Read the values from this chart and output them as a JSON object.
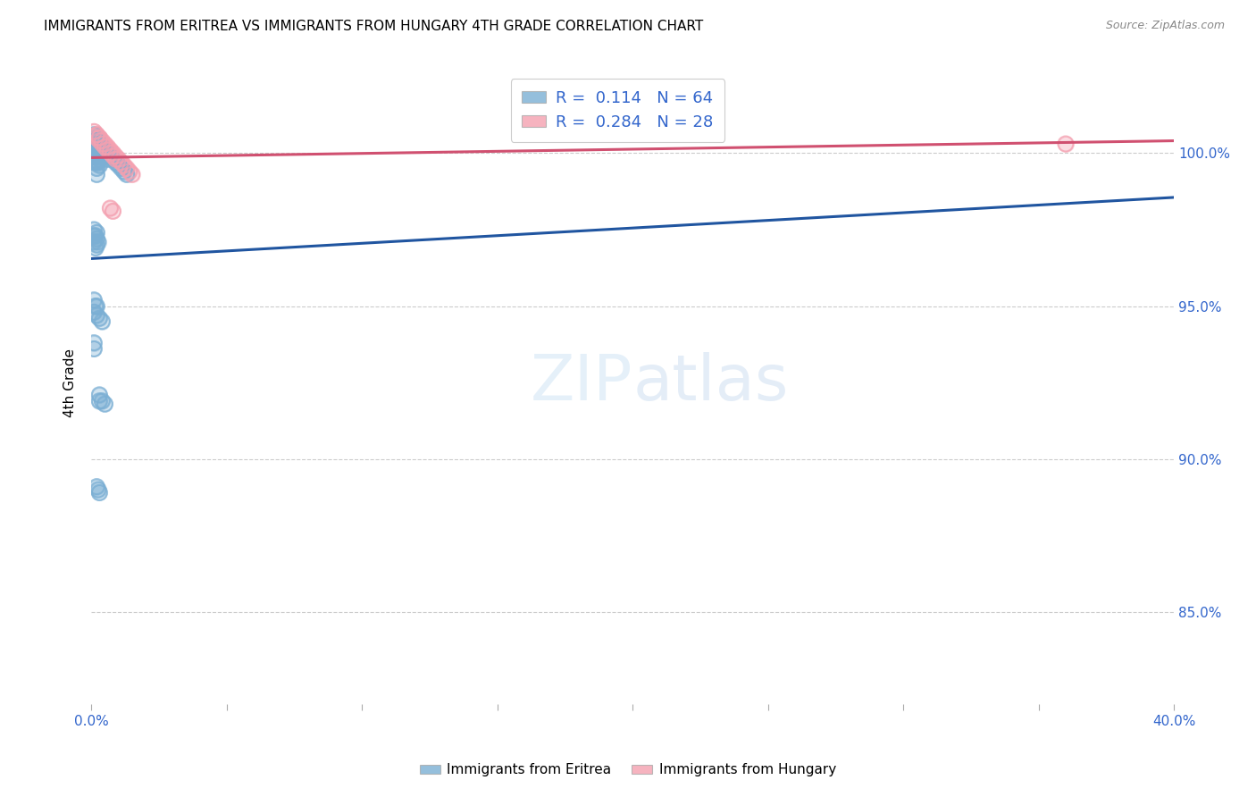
{
  "title": "IMMIGRANTS FROM ERITREA VS IMMIGRANTS FROM HUNGARY 4TH GRADE CORRELATION CHART",
  "source": "Source: ZipAtlas.com",
  "ylabel": "4th Grade",
  "xlim": [
    0.0,
    0.4
  ],
  "ylim": [
    0.82,
    1.03
  ],
  "ytick_vals": [
    0.85,
    0.9,
    0.95,
    1.0
  ],
  "ytick_labels": [
    "85.0%",
    "90.0%",
    "95.0%",
    "100.0%"
  ],
  "xtick_vals": [
    0.0,
    0.05,
    0.1,
    0.15,
    0.2,
    0.25,
    0.3,
    0.35,
    0.4
  ],
  "R_eritrea": 0.114,
  "N_eritrea": 64,
  "R_hungary": 0.284,
  "N_hungary": 28,
  "eritrea_color": "#7bafd4",
  "hungary_color": "#f4a0b0",
  "eritrea_line_color": "#2055a0",
  "hungary_line_color": "#d05070",
  "eritrea_line": [
    0.0,
    0.9655,
    0.4,
    0.9855
  ],
  "hungary_line": [
    0.0,
    0.9985,
    0.4,
    1.004
  ],
  "eritrea_x": [
    0.001,
    0.001,
    0.001,
    0.001,
    0.001,
    0.0015,
    0.0015,
    0.0015,
    0.002,
    0.002,
    0.002,
    0.002,
    0.002,
    0.002,
    0.002,
    0.0025,
    0.0025,
    0.0025,
    0.0025,
    0.003,
    0.003,
    0.003,
    0.003,
    0.003,
    0.0035,
    0.0035,
    0.004,
    0.004,
    0.005,
    0.005,
    0.006,
    0.006,
    0.007,
    0.008,
    0.009,
    0.01,
    0.011,
    0.012,
    0.013,
    0.001,
    0.001,
    0.0015,
    0.002,
    0.002,
    0.0025,
    0.001,
    0.0015,
    0.002,
    0.001,
    0.001,
    0.003,
    0.003,
    0.004,
    0.005,
    0.002,
    0.0025,
    0.003,
    0.001,
    0.002,
    0.0015,
    0.001,
    0.002,
    0.003,
    0.004
  ],
  "eritrea_y": [
    1.006,
    1.003,
    1.001,
    0.999,
    0.997,
    1.004,
    1.001,
    0.999,
    1.005,
    1.003,
    1.001,
    0.999,
    0.997,
    0.995,
    0.993,
    1.004,
    1.002,
    0.999,
    0.997,
    1.004,
    1.002,
    1.0,
    0.998,
    0.996,
    1.003,
    1.001,
    1.002,
    1.0,
    1.001,
    0.999,
    1.0,
    0.998,
    0.999,
    0.998,
    0.997,
    0.996,
    0.995,
    0.994,
    0.993,
    0.975,
    0.973,
    0.973,
    0.974,
    0.972,
    0.971,
    0.952,
    0.95,
    0.95,
    0.938,
    0.936,
    0.921,
    0.919,
    0.919,
    0.918,
    0.891,
    0.89,
    0.889,
    0.971,
    0.97,
    0.969,
    0.948,
    0.947,
    0.946,
    0.945
  ],
  "hungary_x": [
    0.001,
    0.002,
    0.003,
    0.004,
    0.005,
    0.006,
    0.007,
    0.008,
    0.009,
    0.01,
    0.011,
    0.012,
    0.013,
    0.014,
    0.015,
    0.002,
    0.003,
    0.004,
    0.005,
    0.006,
    0.007,
    0.008,
    0.009,
    0.002,
    0.003,
    0.007,
    0.36,
    0.008
  ],
  "hungary_y": [
    1.007,
    1.006,
    1.005,
    1.004,
    1.003,
    1.002,
    1.001,
    1.0,
    0.999,
    0.998,
    0.997,
    0.996,
    0.995,
    0.994,
    0.993,
    1.005,
    1.004,
    1.003,
    1.002,
    1.001,
    1.0,
    0.999,
    0.998,
    1.006,
    1.005,
    0.982,
    1.003,
    0.981
  ]
}
